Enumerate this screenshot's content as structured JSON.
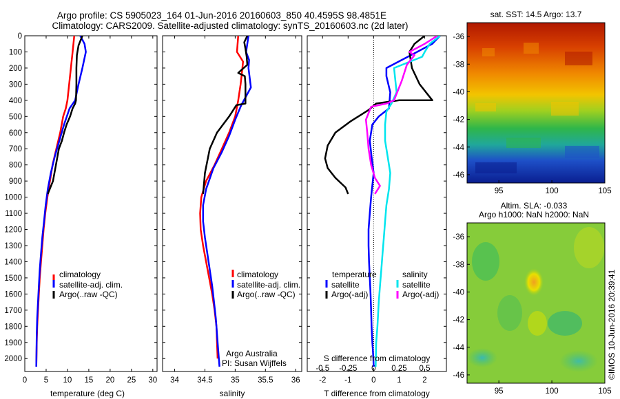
{
  "header": {
    "line1": "Argo profile: CS 5905023_164 01-Jun-2016 20160603_850 40.4595S 98.4851E",
    "line2": "Climatology: CARS2009. Satellite-adjusted climatology: synTS_20160603.nc (2d later)"
  },
  "colors": {
    "climatology": "#ff0000",
    "satellite": "#0000ff",
    "argo": "#000000",
    "sat_salinity": "#00e5ee",
    "argo_salinity": "#ff00ff"
  },
  "chart_data": [
    {
      "type": "line",
      "panel": "temperature",
      "xlabel": "temperature (deg C)",
      "xlim": [
        0,
        31
      ],
      "xticks": [
        0,
        5,
        10,
        15,
        20,
        25,
        30
      ],
      "ylim": [
        0,
        2080
      ],
      "yticks": [
        0,
        100,
        200,
        300,
        400,
        500,
        600,
        700,
        800,
        900,
        1000,
        1100,
        1200,
        1300,
        1400,
        1500,
        1600,
        1700,
        1800,
        1900,
        2000
      ],
      "legend": [
        "climatology",
        "satellite-adj. clim.",
        "Argo(..raw -QC)"
      ],
      "series": [
        {
          "name": "climatology",
          "color": "#ff0000",
          "x": [
            11.6,
            11.2,
            10.8,
            10.4,
            10.0,
            9.6,
            9.0,
            8.3,
            7.4,
            6.5,
            5.9,
            5.3,
            4.8,
            4.4,
            4.1,
            3.8,
            3.5,
            3.3,
            3.1,
            2.9,
            2.8,
            2.7
          ],
          "y": [
            0,
            100,
            200,
            300,
            400,
            450,
            500,
            600,
            700,
            800,
            900,
            1000,
            1100,
            1200,
            1300,
            1400,
            1500,
            1600,
            1700,
            1800,
            1900,
            2050
          ]
        },
        {
          "name": "satellite-adj. clim.",
          "color": "#0000ff",
          "x": [
            13.0,
            14.0,
            14.3,
            13.5,
            12.6,
            11.8,
            10.5,
            9.2,
            8.1,
            7.0,
            6.1,
            5.4,
            4.9,
            4.5,
            4.1,
            3.8,
            3.5,
            3.3,
            3.1,
            2.9,
            2.8,
            2.7
          ],
          "y": [
            0,
            50,
            100,
            200,
            300,
            400,
            450,
            550,
            650,
            750,
            850,
            950,
            1050,
            1150,
            1250,
            1350,
            1450,
            1550,
            1650,
            1750,
            1850,
            2050
          ]
        },
        {
          "name": "Argo(..raw -QC)",
          "color": "#000000",
          "x": [
            13.5,
            12.6,
            12.2,
            12.1,
            12.1,
            12.0,
            11.8,
            11.2,
            10.6,
            9.8,
            9.2,
            8.7,
            8.0,
            7.3,
            6.6,
            5.4
          ],
          "y": [
            0,
            60,
            120,
            200,
            300,
            400,
            420,
            450,
            500,
            550,
            600,
            650,
            700,
            800,
            900,
            980
          ]
        }
      ]
    },
    {
      "type": "line",
      "panel": "salinity",
      "xlabel": "salinity",
      "xlim": [
        33.8,
        36.1
      ],
      "xticks": [
        34,
        34.5,
        35,
        35.5,
        36
      ],
      "ylim": [
        0,
        2080
      ],
      "legend": [
        "climatology",
        "satellite-adj. clim.",
        "Argo(..raw -QC)"
      ],
      "annotation": [
        "Argo Australia",
        "PI: Susan Wijffels"
      ],
      "series": [
        {
          "name": "climatology",
          "color": "#ff0000",
          "x": [
            35.05,
            35.03,
            35.13,
            35.12,
            35.09,
            35.05,
            35.0,
            34.9,
            34.78,
            34.66,
            34.52,
            34.44,
            34.42,
            34.43,
            34.47,
            34.52,
            34.57,
            34.62,
            34.66,
            34.69,
            34.71
          ],
          "y": [
            0,
            100,
            160,
            200,
            300,
            400,
            500,
            600,
            700,
            800,
            900,
            1000,
            1100,
            1200,
            1300,
            1400,
            1500,
            1600,
            1700,
            1800,
            2000
          ]
        },
        {
          "name": "satellite-adj. clim.",
          "color": "#0000ff",
          "x": [
            35.22,
            35.2,
            35.18,
            35.23,
            35.22,
            35.26,
            35.1,
            35.0,
            34.9,
            34.78,
            34.64,
            34.52,
            34.47,
            34.47,
            34.5,
            34.54,
            34.58,
            34.62,
            34.65,
            34.68,
            34.71,
            34.74
          ],
          "y": [
            0,
            50,
            100,
            150,
            200,
            320,
            430,
            520,
            620,
            720,
            820,
            950,
            1050,
            1150,
            1250,
            1350,
            1450,
            1550,
            1650,
            1750,
            1900,
            2050
          ]
        },
        {
          "name": "Argo(..raw -QC)",
          "color": "#000000",
          "x": [
            35.2,
            35.15,
            35.17,
            35.19,
            35.2,
            35.08,
            35.05,
            35.16,
            35.17,
            35.17,
            35.02,
            34.9,
            34.7,
            34.58,
            34.5,
            34.47
          ],
          "y": [
            0,
            40,
            80,
            130,
            180,
            220,
            230,
            250,
            300,
            420,
            430,
            500,
            600,
            700,
            850,
            980
          ]
        }
      ]
    },
    {
      "type": "line",
      "panel": "difference",
      "xlabel": "T difference from climatology",
      "xlim": [
        -2.6,
        2.85
      ],
      "xticks": [
        -2,
        -1,
        0,
        1,
        2
      ],
      "x2label": "S difference from climatology",
      "x2ticks": [
        -0.5,
        -0.25,
        0,
        0.25,
        0.5
      ],
      "x2tick_labels": [
        "-0.5",
        "-0.25",
        "0",
        "0.25",
        "0.5"
      ],
      "x2_to_x": 4,
      "ylim": [
        0,
        2080
      ],
      "legend_headings": [
        "temperature",
        "salinity"
      ],
      "legend": [
        "satellite",
        "Argo(-adj)",
        "satellite",
        "Argo(-adj)"
      ],
      "series": [
        {
          "name": "satellite",
          "quantity": "temperature",
          "color": "#0000ff",
          "x": [
            2.6,
            2.3,
            1.7,
            0.5,
            0.5,
            0.65,
            0.6,
            0.2,
            -0.05,
            -0.15,
            -0.08,
            0.0,
            -0.1,
            -0.15,
            -0.2,
            -0.2,
            -0.18,
            -0.15,
            -0.12,
            -0.1,
            -0.08,
            -0.05,
            -0.03,
            -0.01,
            0.0
          ],
          "y": [
            0,
            50,
            100,
            200,
            250,
            350,
            450,
            500,
            550,
            650,
            750,
            850,
            1000,
            1100,
            1200,
            1300,
            1400,
            1500,
            1600,
            1700,
            1800,
            1900,
            1950,
            2000,
            2050
          ]
        },
        {
          "name": "Argo(-adj)",
          "quantity": "temperature",
          "color": "#000000",
          "x": [
            2.0,
            1.6,
            1.4,
            1.5,
            1.8,
            2.3,
            1.0,
            0.1,
            -0.2,
            -0.9,
            -1.5,
            -1.8,
            -1.9,
            -1.8,
            -1.5,
            -1.1,
            -1.0
          ],
          "y": [
            0,
            50,
            100,
            200,
            300,
            400,
            400,
            420,
            460,
            530,
            600,
            680,
            760,
            820,
            880,
            940,
            980
          ]
        },
        {
          "name": "satellite",
          "quantity": "salinity",
          "color": "#00e5ee",
          "x": [
            2.6,
            2.2,
            2.0,
            1.9,
            0.8,
            0.9,
            0.7,
            0.5,
            0.45,
            0.45,
            0.55,
            0.65,
            0.6,
            0.5,
            0.45,
            0.4,
            0.35,
            0.3,
            0.25,
            0.2,
            0.15,
            0.1,
            0.08
          ],
          "y": [
            0,
            50,
            100,
            130,
            200,
            350,
            420,
            470,
            550,
            650,
            750,
            850,
            950,
            1050,
            1150,
            1250,
            1350,
            1450,
            1550,
            1650,
            1800,
            1900,
            2050
          ]
        },
        {
          "name": "Argo(-adj)",
          "quantity": "salinity",
          "color": "#ff00ff",
          "x": [
            2.5,
            2.0,
            1.4,
            1.6,
            1.3,
            1.1,
            0.8,
            0.5,
            -0.1,
            -0.3,
            -0.25,
            -0.2,
            -0.1,
            0.05,
            0.25,
            0.05
          ],
          "y": [
            0,
            50,
            100,
            120,
            180,
            280,
            400,
            420,
            440,
            520,
            600,
            700,
            800,
            880,
            930,
            980
          ]
        }
      ]
    }
  ],
  "sst_map": {
    "title": "sat. SST: 14.5 Argo: 13.7",
    "xticks": [
      95,
      100,
      105
    ],
    "yticks": [
      -36,
      -38,
      -40,
      -42,
      -44,
      -46
    ],
    "xlim": [
      92,
      105
    ],
    "ylim": [
      -46.6,
      -35
    ]
  },
  "sla_map": {
    "title1": "Altim. SLA: -0.033",
    "title2": "Argo h1000: NaN h2000: NaN",
    "xticks": [
      95,
      100,
      105
    ],
    "yticks": [
      -36,
      -38,
      -40,
      -42,
      -44,
      -46
    ],
    "xlim": [
      92,
      105
    ],
    "ylim": [
      -46.6,
      -35
    ]
  },
  "credit": "©IMOS 10-Jun-2016 20:39:41"
}
